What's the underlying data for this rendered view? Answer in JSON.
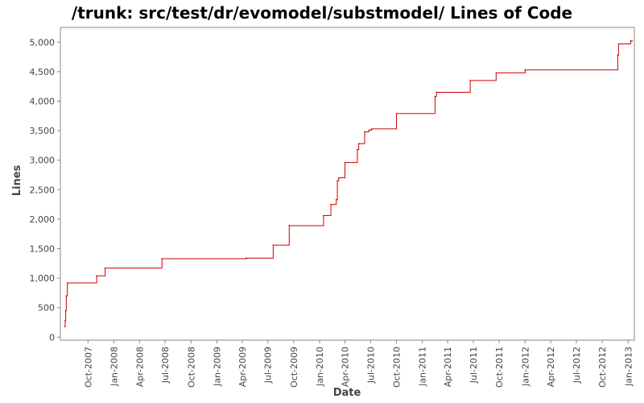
{
  "chart_data": {
    "type": "line",
    "step": true,
    "title": "/trunk: src/test/dr/evomodel/substmodel/ Lines of Code",
    "xlabel": "Date",
    "ylabel": "Lines",
    "grid": false,
    "legend": "none",
    "xlim": [
      "2007-06-25",
      "2013-01-23"
    ],
    "ylim": [
      -50,
      5250
    ],
    "y_ticks": [
      0,
      500,
      1000,
      1500,
      2000,
      2500,
      3000,
      3500,
      4000,
      4500,
      5000
    ],
    "y_tick_labels": [
      "0",
      "500",
      "1,000",
      "1,500",
      "2,000",
      "2,500",
      "3,000",
      "3,500",
      "4,000",
      "4,500",
      "5,000"
    ],
    "x_ticks": [
      "2007-10-01",
      "2008-01-01",
      "2008-04-01",
      "2008-07-01",
      "2008-10-01",
      "2009-01-01",
      "2009-04-01",
      "2009-07-01",
      "2009-10-01",
      "2010-01-01",
      "2010-04-01",
      "2010-07-01",
      "2010-10-01",
      "2011-01-01",
      "2011-04-01",
      "2011-07-01",
      "2011-10-01",
      "2012-01-01",
      "2012-04-01",
      "2012-07-01",
      "2012-10-01",
      "2013-01-01"
    ],
    "x_tick_labels": [
      "Oct-2007",
      "Jan-2008",
      "Apr-2008",
      "Jul-2008",
      "Oct-2008",
      "Jan-2009",
      "Apr-2009",
      "Jul-2009",
      "Oct-2009",
      "Jan-2010",
      "Apr-2010",
      "Jul-2010",
      "Oct-2010",
      "Jan-2011",
      "Apr-2011",
      "Jul-2011",
      "Oct-2011",
      "Jan-2012",
      "Apr-2012",
      "Jul-2012",
      "Oct-2012",
      "Jan-2013"
    ],
    "series": [
      {
        "color": "#cc0000",
        "points": [
          {
            "x": "2007-07-10",
            "y": 180
          },
          {
            "x": "2007-07-12",
            "y": 280
          },
          {
            "x": "2007-07-14",
            "y": 450
          },
          {
            "x": "2007-07-16",
            "y": 700
          },
          {
            "x": "2007-07-20",
            "y": 920
          },
          {
            "x": "2007-11-01",
            "y": 1040
          },
          {
            "x": "2007-12-01",
            "y": 1170
          },
          {
            "x": "2008-06-20",
            "y": 1330
          },
          {
            "x": "2009-04-15",
            "y": 1340
          },
          {
            "x": "2009-07-20",
            "y": 1560
          },
          {
            "x": "2009-09-15",
            "y": 1890
          },
          {
            "x": "2010-01-15",
            "y": 2060
          },
          {
            "x": "2010-02-10",
            "y": 2250
          },
          {
            "x": "2010-03-01",
            "y": 2330
          },
          {
            "x": "2010-03-05",
            "y": 2650
          },
          {
            "x": "2010-03-10",
            "y": 2700
          },
          {
            "x": "2010-04-01",
            "y": 2960
          },
          {
            "x": "2010-05-15",
            "y": 3180
          },
          {
            "x": "2010-05-20",
            "y": 3280
          },
          {
            "x": "2010-06-10",
            "y": 3480
          },
          {
            "x": "2010-06-25",
            "y": 3510
          },
          {
            "x": "2010-07-05",
            "y": 3530
          },
          {
            "x": "2010-10-01",
            "y": 3790
          },
          {
            "x": "2011-02-15",
            "y": 4080
          },
          {
            "x": "2011-02-20",
            "y": 4150
          },
          {
            "x": "2011-06-20",
            "y": 4350
          },
          {
            "x": "2011-09-20",
            "y": 4480
          },
          {
            "x": "2012-01-01",
            "y": 4530
          },
          {
            "x": "2012-11-25",
            "y": 4780
          },
          {
            "x": "2012-11-28",
            "y": 4970
          },
          {
            "x": "2013-01-10",
            "y": 5020
          },
          {
            "x": "2013-01-15",
            "y": 5020
          }
        ]
      }
    ]
  }
}
